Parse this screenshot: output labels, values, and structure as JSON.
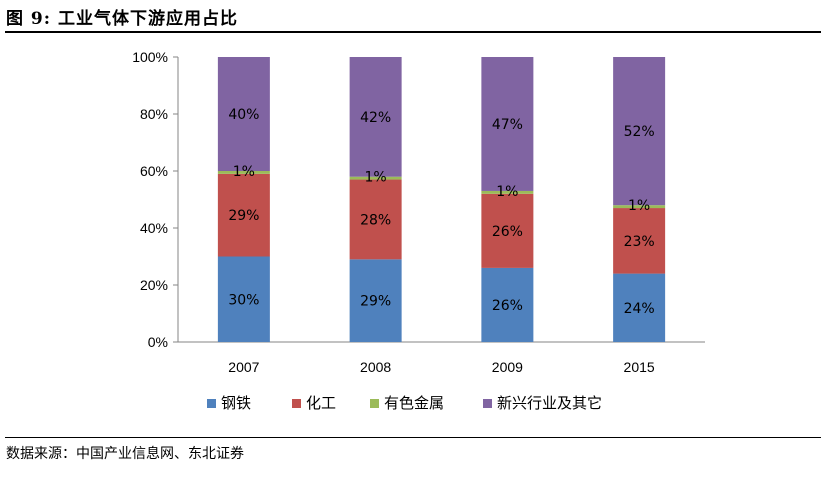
{
  "figure": {
    "title": "图 9: 工业气体下游应用占比",
    "source": "数据来源：中国产业信息网、东北证券"
  },
  "chart_data": {
    "type": "bar",
    "stacked": true,
    "categories": [
      "2007",
      "2008",
      "2009",
      "2015"
    ],
    "series": [
      {
        "name": "钢铁",
        "values": [
          30,
          29,
          26,
          24
        ],
        "labels": [
          "30%",
          "29%",
          "26%",
          "24%"
        ],
        "color": "#4F81BD"
      },
      {
        "name": "化工",
        "values": [
          29,
          28,
          26,
          23
        ],
        "labels": [
          "29%",
          "28%",
          "26%",
          "23%"
        ],
        "color": "#C0504D"
      },
      {
        "name": "有色金属",
        "values": [
          1,
          1,
          1,
          1
        ],
        "labels": [
          "1%",
          "1%",
          "1%",
          "1%"
        ],
        "color": "#9BBB59"
      },
      {
        "name": "新兴行业及其它",
        "values": [
          40,
          42,
          47,
          52
        ],
        "labels": [
          "40%",
          "42%",
          "47%",
          "52%"
        ],
        "color": "#8064A2"
      }
    ],
    "yticks": [
      "0%",
      "20%",
      "40%",
      "60%",
      "80%",
      "100%"
    ],
    "ylim": [
      0,
      100
    ],
    "legend": "bottom",
    "grid": false
  }
}
